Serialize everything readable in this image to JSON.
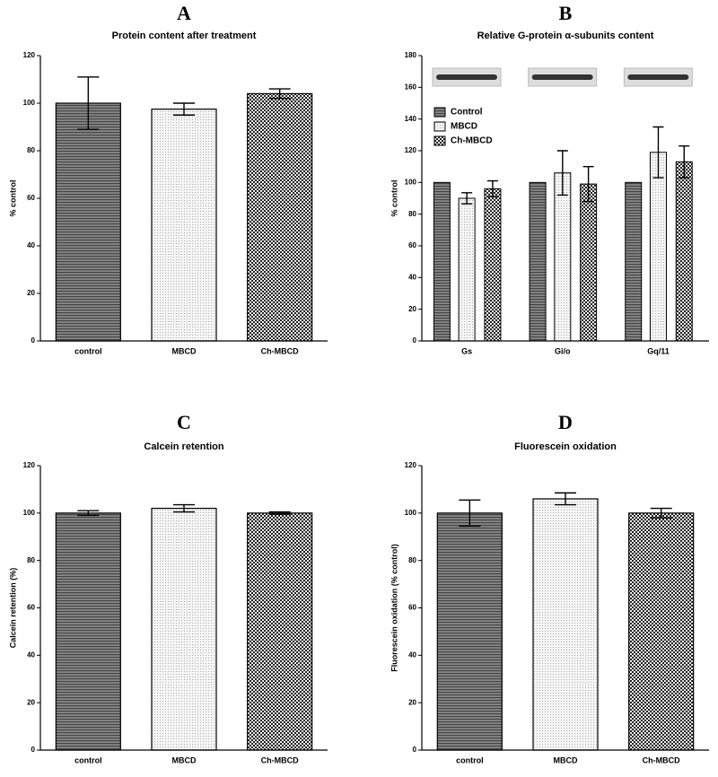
{
  "chart_data": [
    {
      "type": "bar",
      "panel": "A",
      "title": "Protein content after treatment",
      "y_label": "% control",
      "categories": [
        "control",
        "MBCD",
        "Ch-MBCD"
      ],
      "values": [
        100,
        97.5,
        104
      ],
      "errors": [
        11,
        2.5,
        2
      ],
      "ylim": [
        0,
        120
      ],
      "yticks": [
        0,
        20,
        40,
        60,
        80,
        100,
        120
      ]
    },
    {
      "type": "grouped_bar",
      "panel": "B",
      "title": "Relative G-protein α-subunits content",
      "y_label": "% control",
      "categories": [
        "Gs",
        "Gi/o",
        "Gq/11"
      ],
      "series": [
        {
          "name": "Control",
          "values": [
            100,
            100,
            100
          ]
        },
        {
          "name": "MBCD",
          "values": [
            90,
            106,
            119
          ],
          "errors": [
            3.5,
            14,
            16
          ]
        },
        {
          "name": "Ch-MBCD",
          "values": [
            96,
            99,
            113
          ],
          "errors": [
            5,
            11,
            10
          ]
        }
      ],
      "legend": "upper left",
      "ylim": [
        0,
        180
      ],
      "yticks": [
        0,
        20,
        40,
        60,
        80,
        100,
        120,
        140,
        160,
        180
      ]
    },
    {
      "type": "bar",
      "panel": "C",
      "title": "Calcein retention",
      "y_label": "Calcein retention (%)",
      "categories": [
        "control",
        "MBCD",
        "Ch-MBCD"
      ],
      "values": [
        100,
        102,
        100
      ],
      "errors": [
        1,
        1.5,
        0.5
      ],
      "ylim": [
        0,
        120
      ],
      "yticks": [
        0,
        20,
        40,
        60,
        80,
        100,
        120
      ]
    },
    {
      "type": "bar",
      "panel": "D",
      "title": "Fluorescein oxidation",
      "y_label": "Fluorescein oxidation (% control)",
      "categories": [
        "control",
        "MBCD",
        "Ch-MBCD"
      ],
      "values": [
        100,
        106,
        100
      ],
      "errors": [
        5.5,
        2.5,
        2
      ],
      "ylim": [
        0,
        120
      ],
      "yticks": [
        0,
        20,
        40,
        60,
        80,
        100,
        120
      ]
    }
  ]
}
